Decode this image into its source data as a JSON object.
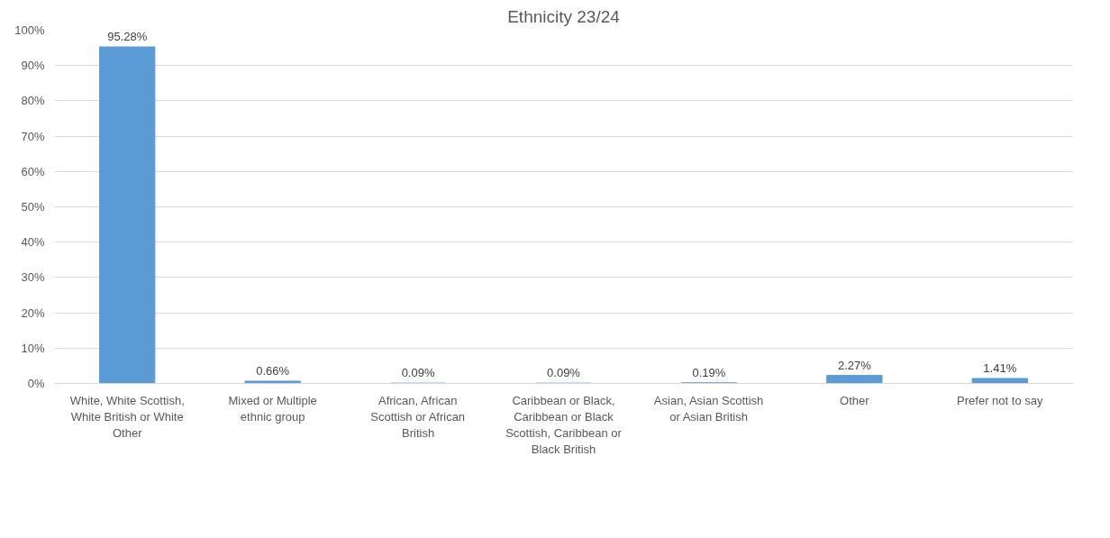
{
  "chart_data": {
    "type": "bar",
    "title": "Ethnicity 23/24",
    "categories": [
      "White, White Scottish, White British or White Other",
      "Mixed or Multiple ethnic group",
      "African, African Scottish or African British",
      "Caribbean or Black, Caribbean or Black Scottish, Caribbean or Black British",
      "Asian, Asian Scottish or Asian British",
      "Other",
      "Prefer not to say"
    ],
    "values": [
      95.28,
      0.66,
      0.09,
      0.09,
      0.19,
      2.27,
      1.41
    ],
    "value_labels": [
      "95.28%",
      "0.66%",
      "0.09%",
      "0.09%",
      "0.19%",
      "2.27%",
      "1.41%"
    ],
    "color": "#5b9bd5",
    "ylim": [
      0,
      100
    ],
    "yticks": [
      {
        "value": 0,
        "label": "0%"
      },
      {
        "value": 10,
        "label": "10%"
      },
      {
        "value": 20,
        "label": "20%"
      },
      {
        "value": 30,
        "label": "30%"
      },
      {
        "value": 40,
        "label": "40%"
      },
      {
        "value": 50,
        "label": "50%"
      },
      {
        "value": 60,
        "label": "60%"
      },
      {
        "value": 70,
        "label": "70%"
      },
      {
        "value": 80,
        "label": "80%"
      },
      {
        "value": 90,
        "label": "90%"
      },
      {
        "value": 100,
        "label": "100%"
      }
    ],
    "grid": "y"
  }
}
